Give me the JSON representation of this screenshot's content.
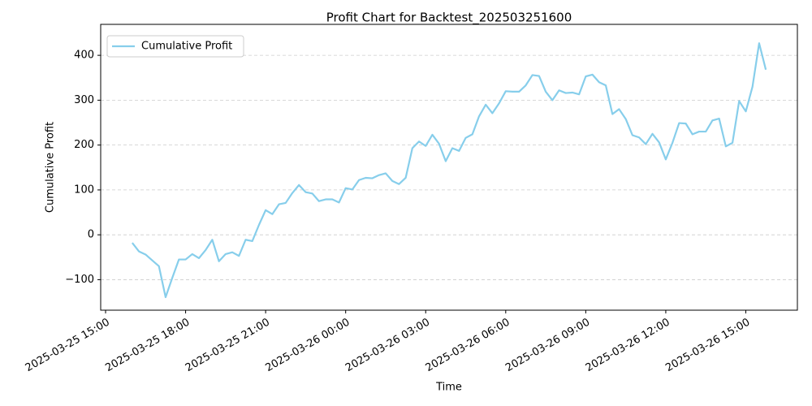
{
  "chart_data": {
    "type": "line",
    "title": "Profit Chart for Backtest_202503251600",
    "xlabel": "Time",
    "ylabel": "Cumulative Profit",
    "x": [
      "2025-03-25 16:00",
      "2025-03-25 16:15",
      "2025-03-25 16:30",
      "2025-03-25 16:45",
      "2025-03-25 17:00",
      "2025-03-25 17:15",
      "2025-03-25 17:30",
      "2025-03-25 17:45",
      "2025-03-25 18:00",
      "2025-03-25 18:15",
      "2025-03-25 18:30",
      "2025-03-25 18:45",
      "2025-03-25 19:00",
      "2025-03-25 19:15",
      "2025-03-25 19:30",
      "2025-03-25 19:45",
      "2025-03-25 20:00",
      "2025-03-25 20:15",
      "2025-03-25 20:30",
      "2025-03-25 20:45",
      "2025-03-25 21:00",
      "2025-03-25 21:15",
      "2025-03-25 21:30",
      "2025-03-25 21:45",
      "2025-03-25 22:00",
      "2025-03-25 22:15",
      "2025-03-25 22:30",
      "2025-03-25 22:45",
      "2025-03-25 23:00",
      "2025-03-25 23:15",
      "2025-03-25 23:30",
      "2025-03-25 23:45",
      "2025-03-26 00:00",
      "2025-03-26 00:15",
      "2025-03-26 00:30",
      "2025-03-26 00:45",
      "2025-03-26 01:00",
      "2025-03-26 01:15",
      "2025-03-26 01:30",
      "2025-03-26 01:45",
      "2025-03-26 02:00",
      "2025-03-26 02:15",
      "2025-03-26 02:30",
      "2025-03-26 02:45",
      "2025-03-26 03:00",
      "2025-03-26 03:15",
      "2025-03-26 03:30",
      "2025-03-26 03:45",
      "2025-03-26 04:00",
      "2025-03-26 04:15",
      "2025-03-26 04:30",
      "2025-03-26 04:45",
      "2025-03-26 05:00",
      "2025-03-26 05:15",
      "2025-03-26 05:30",
      "2025-03-26 05:45",
      "2025-03-26 06:00",
      "2025-03-26 06:15",
      "2025-03-26 06:30",
      "2025-03-26 06:45",
      "2025-03-26 07:00",
      "2025-03-26 07:15",
      "2025-03-26 07:30",
      "2025-03-26 07:45",
      "2025-03-26 08:00",
      "2025-03-26 08:15",
      "2025-03-26 08:30",
      "2025-03-26 08:45",
      "2025-03-26 09:00",
      "2025-03-26 09:15",
      "2025-03-26 09:30",
      "2025-03-26 09:45",
      "2025-03-26 10:00",
      "2025-03-26 10:15",
      "2025-03-26 10:30",
      "2025-03-26 10:45",
      "2025-03-26 11:00",
      "2025-03-26 11:15",
      "2025-03-26 11:30",
      "2025-03-26 11:45",
      "2025-03-26 12:00",
      "2025-03-26 12:15",
      "2025-03-26 12:30",
      "2025-03-26 12:45",
      "2025-03-26 13:00",
      "2025-03-26 13:15",
      "2025-03-26 13:30",
      "2025-03-26 13:45",
      "2025-03-26 14:00",
      "2025-03-26 14:15",
      "2025-03-26 14:30",
      "2025-03-26 14:45",
      "2025-03-26 15:00",
      "2025-03-26 15:15",
      "2025-03-26 15:30",
      "2025-03-26 15:45"
    ],
    "series": [
      {
        "name": "Cumulative Profit",
        "color": "#87ceeb",
        "values": [
          -18,
          -37,
          -44,
          -57,
          -70,
          -139,
          -96,
          -55,
          -55,
          -43,
          -52,
          -34,
          -11,
          -59,
          -43,
          -39,
          -47,
          -11,
          -14,
          22,
          55,
          46,
          68,
          71,
          93,
          111,
          95,
          92,
          75,
          79,
          79,
          72,
          104,
          101,
          122,
          127,
          126,
          133,
          137,
          120,
          113,
          127,
          193,
          208,
          198,
          223,
          203,
          164,
          193,
          187,
          216,
          224,
          264,
          290,
          271,
          293,
          320,
          319,
          319,
          333,
          356,
          354,
          319,
          300,
          322,
          316,
          317,
          313,
          353,
          357,
          340,
          333,
          269,
          280,
          258,
          222,
          217,
          202,
          225,
          206,
          168,
          205,
          249,
          248,
          224,
          230,
          230,
          255,
          259,
          197,
          205,
          298,
          275,
          330,
          427,
          368
        ]
      }
    ],
    "xlim": [
      "2025-03-25 14:49",
      "2025-03-26 16:56"
    ],
    "xticks": [
      "2025-03-25 15:00",
      "2025-03-25 18:00",
      "2025-03-25 21:00",
      "2025-03-26 00:00",
      "2025-03-26 03:00",
      "2025-03-26 06:00",
      "2025-03-26 09:00",
      "2025-03-26 12:00",
      "2025-03-26 15:00"
    ],
    "ylim": [
      -168,
      469
    ],
    "yticks": [
      {
        "value": -100,
        "label": "−100"
      },
      0,
      100,
      200,
      300,
      400
    ],
    "grid": true,
    "legend": "upper left"
  }
}
